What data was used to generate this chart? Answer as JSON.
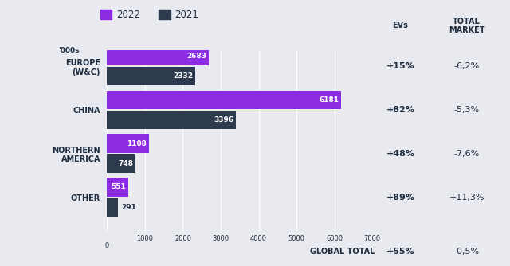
{
  "categories": [
    "EUROPE\n(W&C)",
    "CHINA",
    "NORTHERN\nAMERICA",
    "OTHER"
  ],
  "values_2022": [
    2683,
    6181,
    1108,
    551
  ],
  "values_2021": [
    2332,
    3396,
    748,
    291
  ],
  "color_2022": "#8b2be2",
  "color_2021": "#2e3a4e",
  "background_color": "#e8eaef",
  "ev_changes": [
    "+15%",
    "+82%",
    "+48%",
    "+89%"
  ],
  "market_changes": [
    "-6,2%",
    "-5,3%",
    "-7,6%",
    "+11,3%"
  ],
  "global_total_ev": "+55%",
  "global_total_market": "-0,5%",
  "xlim": [
    0,
    7000
  ],
  "xticks": [
    0,
    1000,
    2000,
    3000,
    4000,
    5000,
    6000,
    7000
  ],
  "xlabel_prefix": "'000s",
  "legend_2022": "2022",
  "legend_2021": "2021",
  "col_evs_label": "EVs",
  "col_market_label": "TOTAL\nMARKET",
  "global_total_label": "GLOBAL TOTAL",
  "text_color": "#1e2d40"
}
